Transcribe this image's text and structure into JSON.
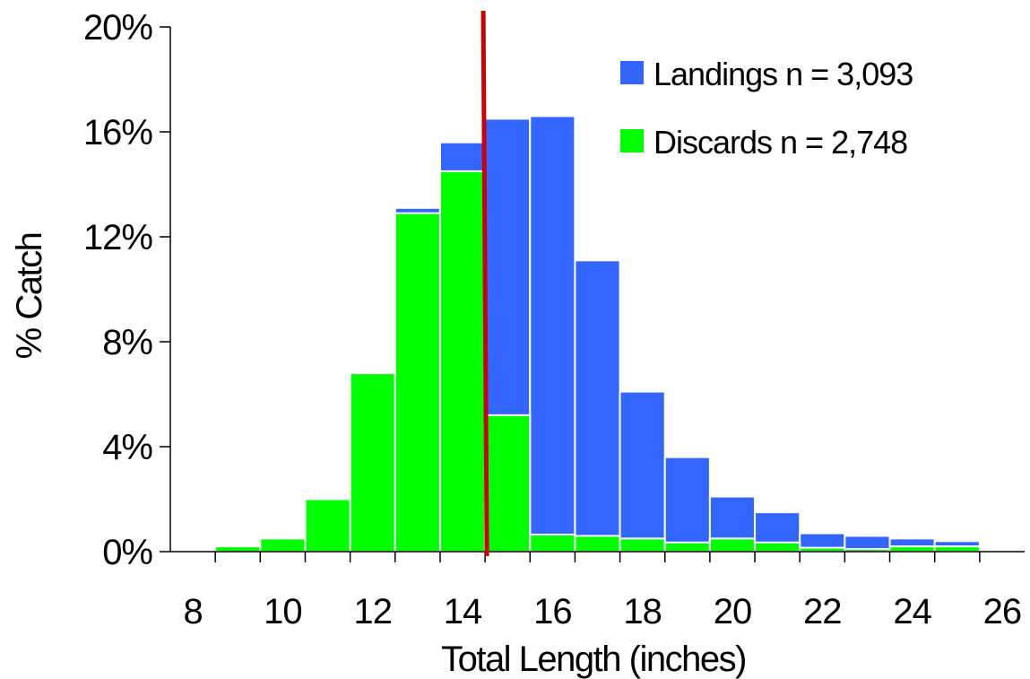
{
  "chart_data": {
    "type": "bar",
    "subtype": "overlapping-histogram",
    "title": "",
    "xlabel": "Total Length (inches)",
    "ylabel": "% Catch",
    "x_tick_labels": [
      "8",
      "10",
      "12",
      "14",
      "16",
      "18",
      "20",
      "22",
      "24",
      "26"
    ],
    "y_tick_labels": [
      "0%",
      "4%",
      "8%",
      "12%",
      "16%",
      "20%"
    ],
    "ylim": [
      0,
      20
    ],
    "xlim": [
      7.5,
      26.5
    ],
    "bin_starts": [
      8.5,
      9.5,
      10.5,
      11.5,
      12.5,
      13.5,
      14.5,
      15.5,
      16.5,
      17.5,
      18.5,
      19.5,
      20.5,
      21.5,
      22.5,
      23.5,
      24.5
    ],
    "bin_width": 1,
    "series": [
      {
        "name": "Landings n = 3,093",
        "color": "#3366ff",
        "values": [
          0,
          0,
          0,
          0,
          13.1,
          15.6,
          16.5,
          16.6,
          11.1,
          6.1,
          3.6,
          2.1,
          1.5,
          0.7,
          0.6,
          0.5,
          0.4
        ]
      },
      {
        "name": "Discards n = 2,748",
        "color": "#00ff00",
        "values": [
          0.2,
          0.5,
          2.0,
          6.8,
          12.9,
          14.5,
          5.2,
          0.65,
          0.6,
          0.5,
          0.35,
          0.5,
          0.35,
          0.15,
          0.1,
          0.2,
          0.2
        ]
      }
    ],
    "reference_line": {
      "x": 14.5,
      "color": "#cc0000"
    },
    "legend_position": "top-right",
    "grid": false
  }
}
